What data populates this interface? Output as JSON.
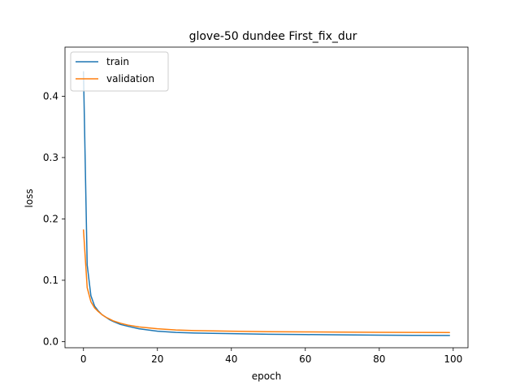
{
  "chart_data": {
    "type": "line",
    "title": "glove-50 dundee First_fix_dur",
    "xlabel": "epoch",
    "ylabel": "loss",
    "xlim": [
      -5,
      104
    ],
    "ylim": [
      -0.01,
      0.48
    ],
    "xticks": [
      0,
      20,
      40,
      60,
      80,
      100
    ],
    "yticks": [
      0.0,
      0.1,
      0.2,
      0.3,
      0.4
    ],
    "ytick_labels": [
      "0.0",
      "0.1",
      "0.2",
      "0.3",
      "0.4"
    ],
    "grid": false,
    "legend": "top-left",
    "series": [
      {
        "name": "train",
        "color": "#1f77b4",
        "x": [
          0,
          1,
          2,
          3,
          4,
          5,
          6,
          7,
          8,
          10,
          12,
          15,
          20,
          25,
          30,
          40,
          50,
          60,
          70,
          80,
          90,
          99
        ],
        "y": [
          0.44,
          0.125,
          0.075,
          0.058,
          0.05,
          0.044,
          0.04,
          0.036,
          0.033,
          0.028,
          0.025,
          0.021,
          0.017,
          0.015,
          0.014,
          0.013,
          0.012,
          0.0115,
          0.011,
          0.0105,
          0.0102,
          0.01
        ]
      },
      {
        "name": "validation",
        "color": "#ff7f0e",
        "x": [
          0,
          1,
          2,
          3,
          4,
          5,
          6,
          7,
          8,
          10,
          12,
          15,
          20,
          25,
          30,
          40,
          50,
          60,
          70,
          80,
          90,
          99
        ],
        "y": [
          0.182,
          0.088,
          0.065,
          0.055,
          0.049,
          0.044,
          0.04,
          0.037,
          0.034,
          0.03,
          0.027,
          0.024,
          0.021,
          0.019,
          0.018,
          0.017,
          0.0162,
          0.0158,
          0.0155,
          0.0152,
          0.015,
          0.0148
        ]
      }
    ]
  }
}
